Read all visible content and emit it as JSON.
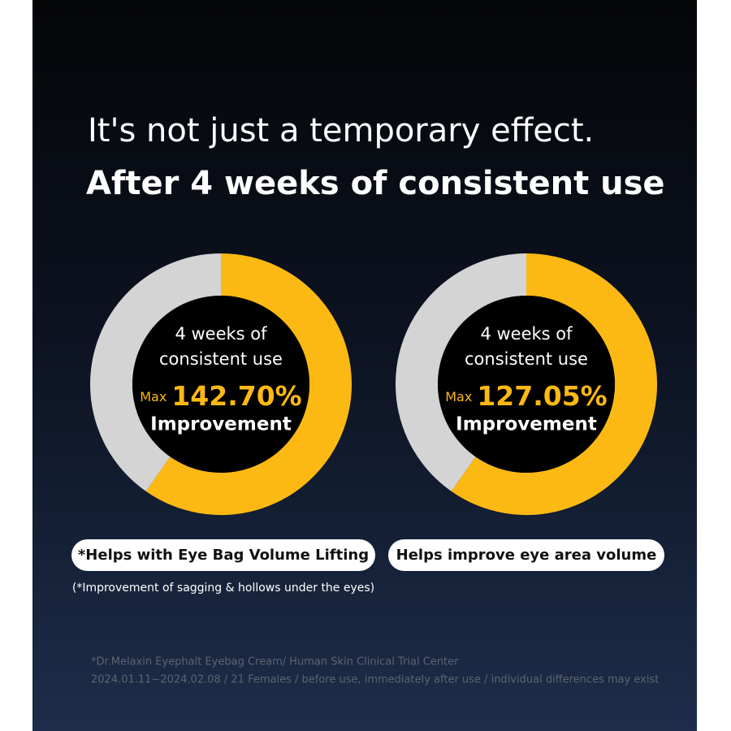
{
  "heading": {
    "line1": "It's not just a temporary effect.",
    "line2": "After 4 weeks of consistent use"
  },
  "panels": [
    {
      "caption": [
        "4 weeks of",
        "consistent use"
      ],
      "prefix": "Max",
      "value": "142.70%",
      "result": "Improvement",
      "pill": "*Helps with Eye Bag Volume Lifting"
    },
    {
      "caption": [
        "4 weeks of",
        "consistent use"
      ],
      "prefix": "Max",
      "value": "127.05%",
      "result": "Improvement",
      "pill": "Helps improve eye area volume"
    }
  ],
  "note": "(*Improvement of sagging & hollows under the eyes)",
  "footnote": [
    "*Dr.Melaxin Eyephalt Eyebag Cream/ Human Skin Clinical Trial Center",
    "2024.01.11~2024.02.08 / 21 Females / before use, immediately after use / individual differences may exist"
  ]
}
